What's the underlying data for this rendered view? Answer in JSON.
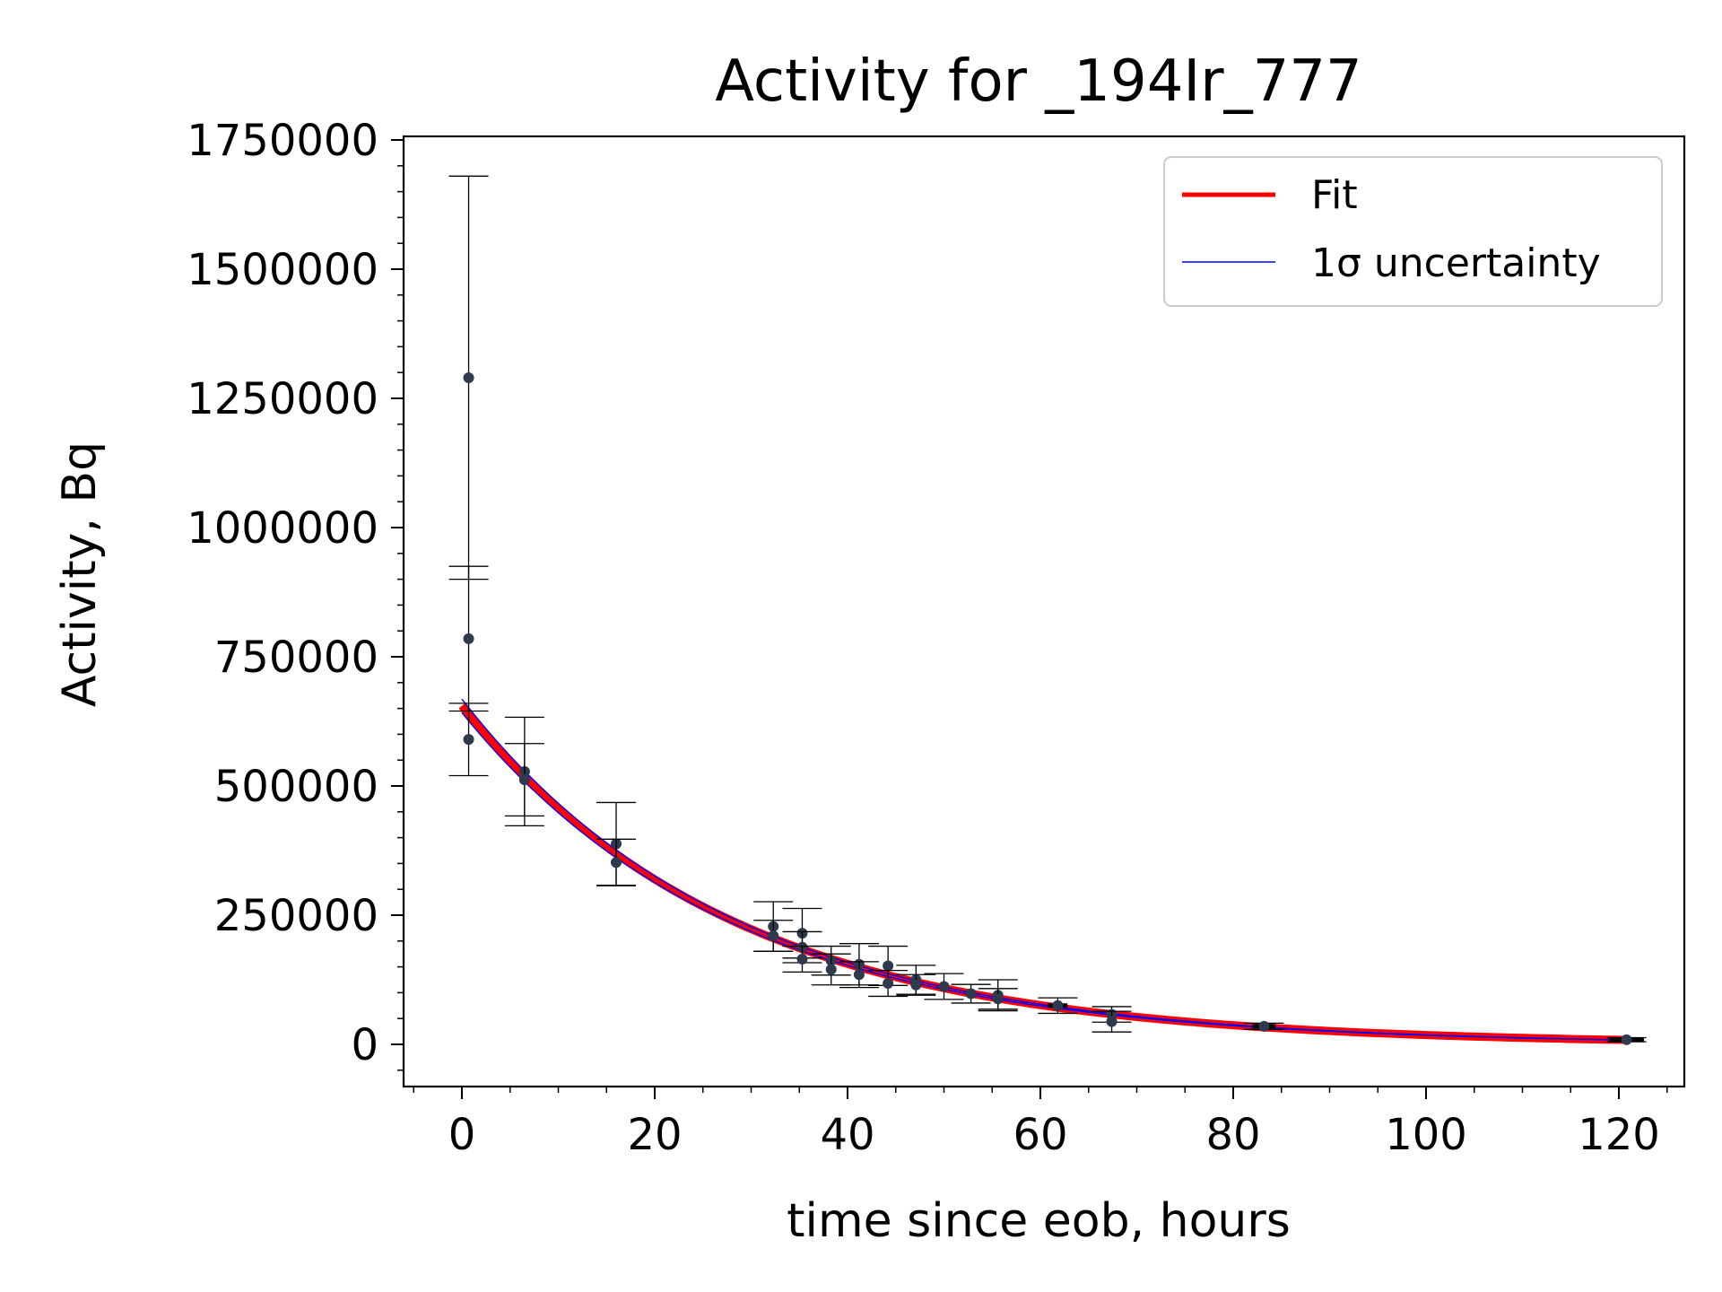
{
  "chart_data": {
    "type": "scatter",
    "title": "Activity for _194Ir_777",
    "xlabel": "time since eob, hours",
    "ylabel": "Activity, Bq",
    "xlim": [
      -6,
      127
    ],
    "ylim": [
      -80000,
      1760000
    ],
    "x_ticks": [
      0,
      20,
      40,
      60,
      80,
      100,
      120
    ],
    "x_tick_labels": [
      "0",
      "20",
      "40",
      "60",
      "80",
      "100",
      "120"
    ],
    "y_ticks": [
      0,
      250000,
      500000,
      750000,
      1000000,
      1250000,
      1500000,
      1750000
    ],
    "y_tick_labels": [
      "0",
      "250000",
      "500000",
      "750000",
      "1000000",
      "1250000",
      "1500000",
      "1750000"
    ],
    "grid": false,
    "legend": {
      "location": "upper right",
      "entries": [
        {
          "label": "Fit",
          "color": "#ff0000"
        },
        {
          "label": "1σ uncertainty",
          "color": "#0000ff"
        }
      ]
    },
    "colors": {
      "fit": "#ff0000",
      "uncertainty": "#0000ff",
      "points": "#2e3b4e",
      "errorbars": "#000000"
    },
    "fit": {
      "model": "exponential decay",
      "A0": 655000,
      "half_life_hours": 19.3,
      "x_range": [
        0,
        120.5
      ]
    },
    "data_points": [
      {
        "x": 0.7,
        "y": 1290000,
        "yerr": 390000,
        "xerr": 0.5
      },
      {
        "x": 0.7,
        "y": 785000,
        "yerr": 140000,
        "xerr": 0.5
      },
      {
        "x": 0.7,
        "y": 590000,
        "yerr": 70000,
        "xerr": 0.5
      },
      {
        "x": 6.5,
        "y": 528000,
        "yerr": 105000,
        "xerr": 0.5
      },
      {
        "x": 6.5,
        "y": 512000,
        "yerr": 70000,
        "xerr": 0.5
      },
      {
        "x": 16.0,
        "y": 388000,
        "yerr": 80000,
        "xerr": 0.5
      },
      {
        "x": 16.0,
        "y": 352000,
        "yerr": 45000,
        "xerr": 0.5
      },
      {
        "x": 32.3,
        "y": 228000,
        "yerr": 48000,
        "xerr": 0.5
      },
      {
        "x": 32.3,
        "y": 210000,
        "yerr": 30000,
        "xerr": 0.5
      },
      {
        "x": 35.3,
        "y": 215000,
        "yerr": 48000,
        "xerr": 0.5
      },
      {
        "x": 35.3,
        "y": 188000,
        "yerr": 30000,
        "xerr": 0.5
      },
      {
        "x": 35.3,
        "y": 165000,
        "yerr": 25000,
        "xerr": 0.5
      },
      {
        "x": 38.3,
        "y": 162000,
        "yerr": 28000,
        "xerr": 0.5
      },
      {
        "x": 38.3,
        "y": 145000,
        "yerr": 30000,
        "xerr": 0.5
      },
      {
        "x": 41.2,
        "y": 155000,
        "yerr": 40000,
        "xerr": 0.5
      },
      {
        "x": 41.2,
        "y": 135000,
        "yerr": 25000,
        "xerr": 0.5
      },
      {
        "x": 44.2,
        "y": 152000,
        "yerr": 38000,
        "xerr": 0.5
      },
      {
        "x": 44.2,
        "y": 118000,
        "yerr": 25000,
        "xerr": 0.5
      },
      {
        "x": 47.1,
        "y": 125000,
        "yerr": 28000,
        "xerr": 0.5
      },
      {
        "x": 47.1,
        "y": 115000,
        "yerr": 20000,
        "xerr": 0.5
      },
      {
        "x": 50.0,
        "y": 112000,
        "yerr": 25000,
        "xerr": 0.5
      },
      {
        "x": 52.8,
        "y": 98000,
        "yerr": 18000,
        "xerr": 0.5
      },
      {
        "x": 55.6,
        "y": 95000,
        "yerr": 30000,
        "xerr": 0.5
      },
      {
        "x": 55.6,
        "y": 88000,
        "yerr": 20000,
        "xerr": 0.5
      },
      {
        "x": 61.8,
        "y": 75000,
        "yerr": 15000,
        "xerr": 1.0
      },
      {
        "x": 67.4,
        "y": 58000,
        "yerr": 15000,
        "xerr": 0.5
      },
      {
        "x": 67.4,
        "y": 44000,
        "yerr": 20000,
        "xerr": 0.5
      },
      {
        "x": 83.2,
        "y": 35000,
        "yerr": 6000,
        "xerr": 1.2
      },
      {
        "x": 120.8,
        "y": 9000,
        "yerr": 4000,
        "xerr": 1.8
      }
    ]
  }
}
